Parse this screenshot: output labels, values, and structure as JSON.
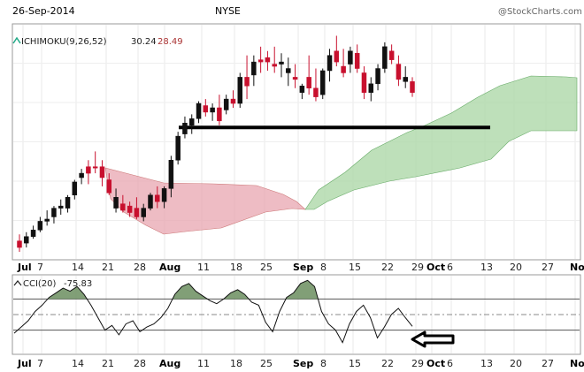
{
  "header": {
    "date": "26-Sep-2014",
    "symbol": "NYSE",
    "copyright": "@StockCharts.com"
  },
  "chart_data": [
    {
      "type": "candlestick",
      "panel": "price",
      "indicator_label": "ICHIMOKU(9,26,52)",
      "indicator_value_1": "30.24",
      "indicator_value_2": "28.49",
      "month_labels": [
        "Jul",
        "Aug",
        "Sep",
        "Oct",
        "Nov"
      ],
      "tick_labels": [
        "7",
        "14",
        "21",
        "28",
        "11",
        "18",
        "25",
        "8",
        "15",
        "22",
        "29",
        "6",
        "13",
        "20",
        "27"
      ],
      "grid": true,
      "candles": [
        {
          "o": 0.05,
          "h": 0.08,
          "l": 0.0,
          "c": 0.02,
          "up": false
        },
        {
          "o": 0.04,
          "h": 0.09,
          "l": 0.02,
          "c": 0.07,
          "up": true
        },
        {
          "o": 0.07,
          "h": 0.12,
          "l": 0.06,
          "c": 0.1,
          "up": true
        },
        {
          "o": 0.1,
          "h": 0.16,
          "l": 0.09,
          "c": 0.14,
          "up": true
        },
        {
          "o": 0.14,
          "h": 0.19,
          "l": 0.12,
          "c": 0.15,
          "up": true
        },
        {
          "o": 0.16,
          "h": 0.21,
          "l": 0.13,
          "c": 0.2,
          "up": true
        },
        {
          "o": 0.2,
          "h": 0.24,
          "l": 0.17,
          "c": 0.21,
          "up": true
        },
        {
          "o": 0.2,
          "h": 0.26,
          "l": 0.18,
          "c": 0.25,
          "up": true
        },
        {
          "o": 0.26,
          "h": 0.33,
          "l": 0.24,
          "c": 0.32,
          "up": true
        },
        {
          "o": 0.34,
          "h": 0.38,
          "l": 0.31,
          "c": 0.36,
          "up": true
        },
        {
          "o": 0.36,
          "h": 0.42,
          "l": 0.31,
          "c": 0.39,
          "up": false
        },
        {
          "o": 0.39,
          "h": 0.46,
          "l": 0.36,
          "c": 0.39,
          "up": false
        },
        {
          "o": 0.39,
          "h": 0.42,
          "l": 0.3,
          "c": 0.34,
          "up": false
        },
        {
          "o": 0.33,
          "h": 0.36,
          "l": 0.26,
          "c": 0.27,
          "up": false
        },
        {
          "o": 0.25,
          "h": 0.29,
          "l": 0.18,
          "c": 0.2,
          "up": true
        },
        {
          "o": 0.22,
          "h": 0.26,
          "l": 0.18,
          "c": 0.19,
          "up": false
        },
        {
          "o": 0.18,
          "h": 0.23,
          "l": 0.16,
          "c": 0.21,
          "up": false
        },
        {
          "o": 0.2,
          "h": 0.25,
          "l": 0.15,
          "c": 0.16,
          "up": false
        },
        {
          "o": 0.16,
          "h": 0.22,
          "l": 0.14,
          "c": 0.2,
          "up": true
        },
        {
          "o": 0.2,
          "h": 0.27,
          "l": 0.19,
          "c": 0.26,
          "up": true
        },
        {
          "o": 0.26,
          "h": 0.3,
          "l": 0.2,
          "c": 0.23,
          "up": false
        },
        {
          "o": 0.23,
          "h": 0.3,
          "l": 0.2,
          "c": 0.29,
          "up": true
        },
        {
          "o": 0.29,
          "h": 0.44,
          "l": 0.25,
          "c": 0.42,
          "up": true
        },
        {
          "o": 0.42,
          "h": 0.55,
          "l": 0.4,
          "c": 0.53,
          "up": true
        },
        {
          "o": 0.54,
          "h": 0.62,
          "l": 0.52,
          "c": 0.59,
          "up": true
        },
        {
          "o": 0.58,
          "h": 0.63,
          "l": 0.54,
          "c": 0.61,
          "up": true
        },
        {
          "o": 0.61,
          "h": 0.69,
          "l": 0.59,
          "c": 0.68,
          "up": true
        },
        {
          "o": 0.67,
          "h": 0.7,
          "l": 0.62,
          "c": 0.64,
          "up": false
        },
        {
          "o": 0.64,
          "h": 0.68,
          "l": 0.6,
          "c": 0.66,
          "up": true
        },
        {
          "o": 0.66,
          "h": 0.72,
          "l": 0.58,
          "c": 0.6,
          "up": false
        },
        {
          "o": 0.65,
          "h": 0.72,
          "l": 0.63,
          "c": 0.7,
          "up": true
        },
        {
          "o": 0.7,
          "h": 0.74,
          "l": 0.66,
          "c": 0.68,
          "up": false
        },
        {
          "o": 0.68,
          "h": 0.82,
          "l": 0.66,
          "c": 0.8,
          "up": true
        },
        {
          "o": 0.8,
          "h": 0.9,
          "l": 0.7,
          "c": 0.76,
          "up": false
        },
        {
          "o": 0.81,
          "h": 0.9,
          "l": 0.76,
          "c": 0.87,
          "up": true
        },
        {
          "o": 0.87,
          "h": 0.94,
          "l": 0.82,
          "c": 0.88,
          "up": false
        },
        {
          "o": 0.87,
          "h": 0.92,
          "l": 0.83,
          "c": 0.89,
          "up": false
        },
        {
          "o": 0.85,
          "h": 0.94,
          "l": 0.82,
          "c": 0.86,
          "up": false
        },
        {
          "o": 0.86,
          "h": 0.91,
          "l": 0.8,
          "c": 0.87,
          "up": true
        },
        {
          "o": 0.82,
          "h": 0.89,
          "l": 0.76,
          "c": 0.84,
          "up": true
        },
        {
          "o": 0.8,
          "h": 0.86,
          "l": 0.75,
          "c": 0.79,
          "up": false
        },
        {
          "o": 0.73,
          "h": 0.77,
          "l": 0.7,
          "c": 0.76,
          "up": true
        },
        {
          "o": 0.8,
          "h": 0.9,
          "l": 0.72,
          "c": 0.75,
          "up": false
        },
        {
          "o": 0.75,
          "h": 0.84,
          "l": 0.69,
          "c": 0.71,
          "up": false
        },
        {
          "o": 0.72,
          "h": 0.84,
          "l": 0.7,
          "c": 0.83,
          "up": true
        },
        {
          "o": 0.83,
          "h": 0.93,
          "l": 0.78,
          "c": 0.9,
          "up": true
        },
        {
          "o": 0.92,
          "h": 0.99,
          "l": 0.85,
          "c": 0.87,
          "up": false
        },
        {
          "o": 0.85,
          "h": 0.93,
          "l": 0.8,
          "c": 0.82,
          "up": false
        },
        {
          "o": 0.86,
          "h": 0.94,
          "l": 0.82,
          "c": 0.92,
          "up": true
        },
        {
          "o": 0.91,
          "h": 0.95,
          "l": 0.82,
          "c": 0.84,
          "up": false
        },
        {
          "o": 0.82,
          "h": 0.85,
          "l": 0.7,
          "c": 0.73,
          "up": false
        },
        {
          "o": 0.73,
          "h": 0.8,
          "l": 0.69,
          "c": 0.77,
          "up": true
        },
        {
          "o": 0.77,
          "h": 0.86,
          "l": 0.74,
          "c": 0.84,
          "up": true
        },
        {
          "o": 0.84,
          "h": 0.96,
          "l": 0.82,
          "c": 0.94,
          "up": true
        },
        {
          "o": 0.92,
          "h": 0.95,
          "l": 0.86,
          "c": 0.88,
          "up": false
        },
        {
          "o": 0.86,
          "h": 0.9,
          "l": 0.76,
          "c": 0.79,
          "up": false
        },
        {
          "o": 0.8,
          "h": 0.85,
          "l": 0.75,
          "c": 0.78,
          "up": true
        },
        {
          "o": 0.78,
          "h": 0.8,
          "l": 0.71,
          "c": 0.73,
          "up": false
        }
      ],
      "support_line": {
        "level": 0.57
      }
    },
    {
      "type": "line",
      "panel": "oscillator",
      "indicator_label": "CCI(20)",
      "indicator_value": "-75.83",
      "reference_levels": [
        100,
        0,
        -100
      ],
      "ylim": [
        -250,
        250
      ],
      "values": [
        -120,
        -80,
        -40,
        20,
        60,
        110,
        140,
        170,
        150,
        180,
        130,
        60,
        -20,
        -100,
        -70,
        -130,
        -60,
        -40,
        -110,
        -80,
        -60,
        -20,
        40,
        130,
        180,
        200,
        150,
        120,
        90,
        70,
        100,
        140,
        160,
        130,
        80,
        60,
        -50,
        -110,
        20,
        110,
        140,
        200,
        220,
        180,
        20,
        -60,
        -100,
        -180,
        -60,
        20,
        60,
        -20,
        -150,
        -80,
        0,
        40,
        -20,
        -75.83
      ]
    }
  ]
}
